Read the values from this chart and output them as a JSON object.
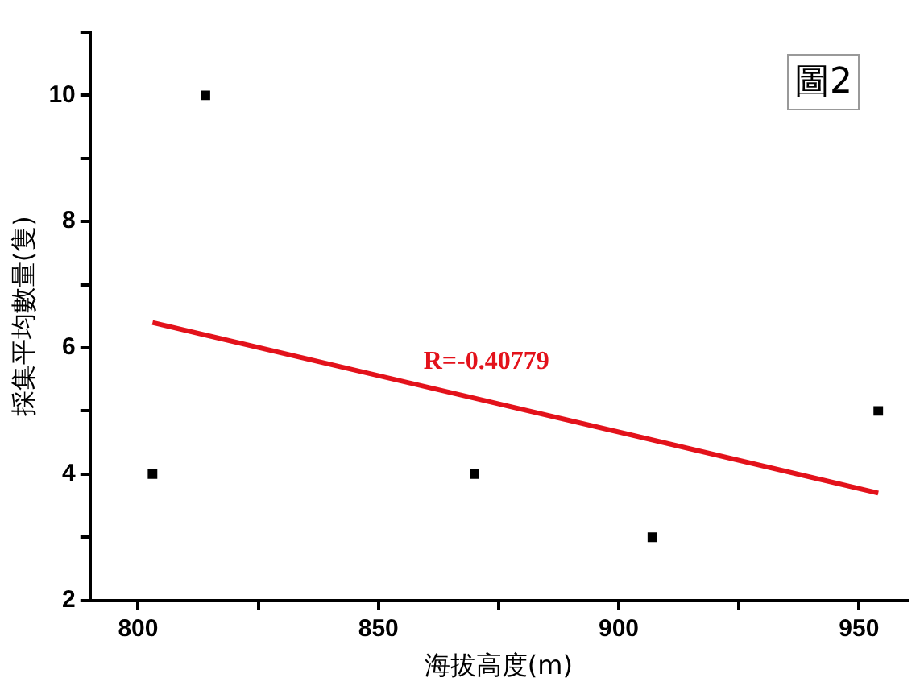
{
  "chart_data": {
    "type": "scatter",
    "xlabel": "海拔高度(m)",
    "ylabel": "採集平均數量(隻)",
    "xlim": [
      790,
      960
    ],
    "ylim": [
      2,
      11
    ],
    "xticks": [
      800,
      {
        "value": 825,
        "label": null
      },
      850,
      {
        "value": 875,
        "label": null
      },
      900,
      {
        "value": 925,
        "label": null
      },
      950
    ],
    "yticks": [
      2,
      {
        "value": 3,
        "label": null
      },
      4,
      {
        "value": 5,
        "label": null
      },
      6,
      {
        "value": 7,
        "label": null
      },
      8,
      {
        "value": 9,
        "label": null
      },
      10,
      {
        "value": 11,
        "label": null
      }
    ],
    "grid": false,
    "legend": false,
    "marker": "square",
    "series": [
      {
        "color": "#000000",
        "x": [
          803,
          814,
          870,
          907,
          954
        ],
        "values": [
          4,
          10,
          4,
          3,
          5
        ]
      },
      {
        "type": "line",
        "color": "#e3121b",
        "marker": "none",
        "line_style": "solid",
        "x": [
          803,
          954
        ],
        "values": [
          6.4,
          3.7
        ]
      }
    ],
    "annotations": [
      "R=-0.40779",
      "圖2"
    ]
  }
}
